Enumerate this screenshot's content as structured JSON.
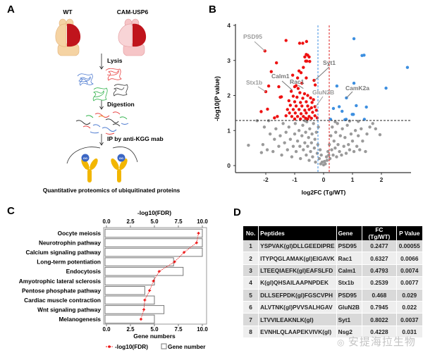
{
  "panels": {
    "a": "A",
    "b": "B",
    "c": "C",
    "d": "D"
  },
  "workflow": {
    "wt_label": "WT",
    "tg_label": "CAM-USP6",
    "step1": "Lysis",
    "step2": "Digestion",
    "step3": "IP by anti-KGG mab",
    "antibody_tag": "GG",
    "caption": "Quantitative proteomics of ubiquitinated proteins",
    "colors": {
      "wt_brain": "#f5d3a3",
      "tg_brain": "#f6c5c7",
      "hemisphere": "#c0141c",
      "antibody": "#f2b600",
      "gg_bead": "#3b66c4"
    }
  },
  "chart_data": [
    {
      "type": "scatter",
      "title": "",
      "xlabel": "log2FC (Tg/WT)",
      "ylabel": "-log10(P value)",
      "xlim": [
        -3,
        3
      ],
      "ylim": [
        -0.2,
        4
      ],
      "xticks": [
        "-2",
        "-1",
        "0",
        "1",
        "2"
      ],
      "yticks": [
        "0",
        "1",
        "2",
        "3",
        "4"
      ],
      "thresholds": {
        "p_line": 1.3,
        "fc_low": -0.2,
        "fc_high": 0.2
      },
      "grid": false,
      "colors": {
        "down": "#ee1111",
        "up": "#3d8fe0",
        "ns": "#9a9a9a",
        "fc_low_line": "#3d8fe0",
        "fc_high_line": "#dd2222",
        "p_line": "#222222"
      },
      "annotations": [
        {
          "label": "PSD95",
          "x": -2.03,
          "y": 3.27,
          "style": "light"
        },
        {
          "label": "Stx1b",
          "x": -2.0,
          "y": 2.11,
          "style": "light"
        },
        {
          "label": "Calm1",
          "x": -1.08,
          "y": 2.15,
          "style": "dark"
        },
        {
          "label": "Rac1",
          "x": -0.7,
          "y": 2.2,
          "style": "dark"
        },
        {
          "label": "Syt1",
          "x": -0.32,
          "y": 2.42,
          "style": "dark"
        },
        {
          "label": "GluN2B",
          "x": -0.28,
          "y": 1.67,
          "style": "light"
        },
        {
          "label": "CamK2a",
          "x": 0.79,
          "y": 1.93,
          "style": "dark"
        }
      ],
      "series": [
        {
          "group": "down",
          "points": [
            [
              -2.03,
              3.27
            ],
            [
              -2.0,
              2.11
            ],
            [
              -1.3,
              3.57
            ],
            [
              -0.83,
              3.49
            ],
            [
              -0.72,
              3.49
            ],
            [
              -0.59,
              3.54
            ],
            [
              -1.63,
              2.93
            ],
            [
              -1.81,
              2.68
            ],
            [
              -1.9,
              2.27
            ],
            [
              -2.16,
              1.54
            ],
            [
              -1.94,
              1.61
            ],
            [
              -1.55,
              2.25
            ],
            [
              -1.46,
              1.96
            ],
            [
              -1.5,
              1.95
            ],
            [
              -1.07,
              2.58
            ],
            [
              -0.33,
              2.43
            ],
            [
              -0.29,
              2.3
            ],
            [
              -0.6,
              3.17
            ],
            [
              -0.55,
              3.15
            ],
            [
              -0.5,
              3.1
            ],
            [
              -0.65,
              3.1
            ],
            [
              -0.48,
              2.97
            ],
            [
              -0.58,
              2.98
            ],
            [
              -0.62,
              2.98
            ],
            [
              -0.7,
              2.8
            ],
            [
              -0.85,
              2.7
            ],
            [
              -0.78,
              2.65
            ],
            [
              -0.9,
              2.5
            ],
            [
              -0.6,
              2.5
            ],
            [
              -0.75,
              2.35
            ],
            [
              -0.95,
              2.28
            ],
            [
              -1.0,
              2.25
            ],
            [
              -0.88,
              2.2
            ],
            [
              -1.12,
              2.12
            ],
            [
              -0.82,
              2.08
            ],
            [
              -0.66,
              2.05
            ],
            [
              -0.55,
              2.0
            ],
            [
              -1.05,
              1.98
            ],
            [
              -0.92,
              1.95
            ],
            [
              -0.72,
              1.92
            ],
            [
              -0.45,
              1.93
            ],
            [
              -0.35,
              1.88
            ],
            [
              -1.2,
              1.85
            ],
            [
              -1.0,
              1.82
            ],
            [
              -0.8,
              1.8
            ],
            [
              -0.6,
              1.82
            ],
            [
              -0.4,
              1.8
            ],
            [
              -1.15,
              1.72
            ],
            [
              -0.95,
              1.7
            ],
            [
              -0.75,
              1.7
            ],
            [
              -0.55,
              1.7
            ],
            [
              -0.3,
              1.68
            ],
            [
              -0.42,
              1.65
            ],
            [
              -1.25,
              1.6
            ],
            [
              -1.05,
              1.6
            ],
            [
              -0.85,
              1.6
            ],
            [
              -0.65,
              1.58
            ],
            [
              -0.5,
              1.6
            ],
            [
              -0.25,
              1.58
            ],
            [
              -1.18,
              1.5
            ],
            [
              -0.98,
              1.5
            ],
            [
              -0.78,
              1.48
            ],
            [
              -0.6,
              1.5
            ],
            [
              -0.38,
              1.52
            ],
            [
              -1.3,
              1.42
            ],
            [
              -1.1,
              1.4
            ],
            [
              -0.9,
              1.4
            ],
            [
              -0.7,
              1.4
            ],
            [
              -0.5,
              1.4
            ],
            [
              -0.3,
              1.42
            ],
            [
              -1.6,
              1.4
            ],
            [
              -1.7,
              1.36
            ],
            [
              -0.62,
              1.35
            ],
            [
              -0.42,
              1.35
            ],
            [
              -0.22,
              1.36
            ],
            [
              -1.0,
              1.33
            ],
            [
              -0.8,
              1.33
            ],
            [
              -0.55,
              1.33
            ]
          ]
        },
        {
          "group": "up",
          "points": [
            [
              1.05,
              3.62
            ],
            [
              1.33,
              3.14
            ],
            [
              1.4,
              3.15
            ],
            [
              2.9,
              2.8
            ],
            [
              1.05,
              2.35
            ],
            [
              0.46,
              2.27
            ],
            [
              2.16,
              2.21
            ],
            [
              0.79,
              1.93
            ],
            [
              1.13,
              1.71
            ],
            [
              1.48,
              1.67
            ],
            [
              0.54,
              1.68
            ],
            [
              0.34,
              1.63
            ],
            [
              0.64,
              1.55
            ],
            [
              0.99,
              1.46
            ],
            [
              1.03,
              1.46
            ],
            [
              0.24,
              1.32
            ],
            [
              0.74,
              1.31
            ],
            [
              1.41,
              1.32
            ],
            [
              0.78,
              1.32
            ]
          ]
        },
        {
          "group": "ns",
          "points": [
            [
              -2.6,
              0.58
            ],
            [
              -2.15,
              0.37
            ],
            [
              -2.1,
              0.6
            ],
            [
              -2.05,
              1.1
            ],
            [
              -1.95,
              0.45
            ],
            [
              -1.85,
              0.9
            ],
            [
              -1.75,
              0.4
            ],
            [
              -1.7,
              0.75
            ],
            [
              -1.65,
              1.05
            ],
            [
              -1.55,
              0.55
            ],
            [
              -1.5,
              0.85
            ],
            [
              -1.45,
              0.3
            ],
            [
              -1.4,
              1.2
            ],
            [
              -1.35,
              0.65
            ],
            [
              -1.3,
              0.95
            ],
            [
              -1.25,
              0.45
            ],
            [
              -1.2,
              1.1
            ],
            [
              -1.15,
              0.75
            ],
            [
              -1.1,
              0.25
            ],
            [
              -1.05,
              0.55
            ],
            [
              -1.0,
              0.9
            ],
            [
              -0.98,
              1.2
            ],
            [
              -0.95,
              0.4
            ],
            [
              -0.9,
              0.7
            ],
            [
              -0.85,
              1.0
            ],
            [
              -0.82,
              0.55
            ],
            [
              -0.8,
              0.2
            ],
            [
              -0.75,
              0.85
            ],
            [
              -0.72,
              1.15
            ],
            [
              -0.7,
              0.45
            ],
            [
              -0.65,
              0.65
            ],
            [
              -0.62,
              0.95
            ],
            [
              -0.6,
              0.3
            ],
            [
              -0.58,
              1.25
            ],
            [
              -0.55,
              0.55
            ],
            [
              -0.52,
              0.8
            ],
            [
              -0.5,
              0.15
            ],
            [
              -0.48,
              1.05
            ],
            [
              -0.45,
              0.4
            ],
            [
              -0.42,
              0.65
            ],
            [
              -0.4,
              0.9
            ],
            [
              -0.38,
              0.25
            ],
            [
              -0.35,
              1.2
            ],
            [
              -0.32,
              0.5
            ],
            [
              -0.3,
              0.75
            ],
            [
              -0.28,
              0.1
            ],
            [
              -0.25,
              0.95
            ],
            [
              -0.22,
              0.35
            ],
            [
              -0.2,
              0.6
            ],
            [
              -0.18,
              1.1
            ],
            [
              -0.15,
              0.2
            ],
            [
              -0.12,
              0.45
            ],
            [
              -0.1,
              0.05
            ],
            [
              -0.08,
              0.3
            ],
            [
              -0.05,
              0.1
            ],
            [
              0.0,
              0.02
            ],
            [
              0.03,
              0.12
            ],
            [
              0.06,
              0.05
            ],
            [
              0.1,
              0.25
            ],
            [
              0.12,
              0.15
            ],
            [
              0.15,
              0.4
            ],
            [
              0.18,
              0.3
            ],
            [
              0.2,
              0.6
            ],
            [
              0.22,
              0.2
            ],
            [
              0.25,
              0.85
            ],
            [
              0.28,
              0.45
            ],
            [
              0.3,
              1.1
            ],
            [
              0.33,
              0.3
            ],
            [
              0.36,
              0.7
            ],
            [
              0.4,
              0.5
            ],
            [
              0.42,
              0.95
            ],
            [
              0.45,
              0.25
            ],
            [
              0.48,
              1.2
            ],
            [
              0.5,
              0.6
            ],
            [
              0.55,
              0.4
            ],
            [
              0.58,
              0.85
            ],
            [
              0.62,
              0.3
            ],
            [
              0.65,
              1.05
            ],
            [
              0.7,
              0.55
            ],
            [
              0.74,
              0.8
            ],
            [
              0.78,
              0.35
            ],
            [
              0.82,
              1.15
            ],
            [
              0.86,
              0.6
            ],
            [
              0.9,
              0.45
            ],
            [
              0.95,
              0.9
            ],
            [
              1.0,
              0.7
            ],
            [
              1.05,
              0.4
            ],
            [
              1.1,
              1.0
            ],
            [
              1.15,
              0.55
            ],
            [
              1.2,
              0.85
            ],
            [
              1.25,
              0.45
            ],
            [
              1.3,
              1.05
            ],
            [
              1.35,
              0.7
            ],
            [
              1.45,
              0.4
            ],
            [
              1.5,
              0.9
            ],
            [
              1.6,
              1.1
            ],
            [
              1.7,
              1.2
            ],
            [
              1.8,
              1.05
            ],
            [
              1.95,
              0.88
            ],
            [
              -2.3,
              1.28
            ],
            [
              -1.9,
              1.28
            ],
            [
              -0.65,
              1.28
            ],
            [
              0.4,
              1.25
            ],
            [
              0.9,
              1.27
            ],
            [
              1.2,
              1.26
            ]
          ]
        }
      ]
    },
    {
      "type": "bar",
      "title": "-log10(FDR)",
      "xlabel": "Gene numbers",
      "xlim": [
        0,
        10
      ],
      "xticks": [
        "0.0",
        "2.5",
        "5.0",
        "7.5",
        "10.0"
      ],
      "categories": [
        "Oocyte meiosis",
        "Neurotrophin pathway",
        "Calcium signaling pathway",
        "Long-term potentiation",
        "Endocytosis",
        "Amyotrophic lateral sclerosis",
        "Pentose phosphate pathway",
        "Cardiac muscle contraction",
        "Wnt signaling pathway",
        "Melanogenesis"
      ],
      "series": [
        {
          "name": "Gene number",
          "type": "bar",
          "values": [
            10,
            10,
            10,
            7,
            8,
            5,
            4,
            5,
            6,
            5
          ]
        },
        {
          "name": "-log10(FDR)",
          "type": "line",
          "values": [
            9.6,
            9.4,
            8.1,
            7.1,
            5.5,
            4.9,
            4.5,
            4.0,
            3.9,
            3.6
          ]
        }
      ],
      "legend": "bottom",
      "colors": {
        "line": "#ee1111",
        "bar_fill": "#ffffff",
        "bar_edge": "#777777"
      }
    },
    {
      "type": "table",
      "columns": [
        "No.",
        "Peptides",
        "Gene",
        "FC (Tg/WT)",
        "P Value"
      ],
      "rows": [
        [
          "1",
          "YSPVAK(gl)DLLGEEDIPRE",
          "PSD95",
          "0.2477",
          "0.00055"
        ],
        [
          "2",
          "ITYPQGLAMAK(gl)EIGAVK",
          "Rac1",
          "0.6327",
          "0.0066"
        ],
        [
          "3",
          "LTEEQIAEFK(gl)EAFSLFD",
          "Calm1",
          "0.4793",
          "0.0074"
        ],
        [
          "4",
          "K(gl)QHSAILAAPNPDEK",
          "Stx1b",
          "0.2539",
          "0.0077"
        ],
        [
          "5",
          "DLLSEFPDK(gl)FGSCVPH",
          "PSD95",
          "0.468",
          "0.029"
        ],
        [
          "6",
          "ALVTNK(gl)PVVSALHGAV",
          "GluN2B",
          "0.7945",
          "0.022"
        ],
        [
          "7",
          "LTVVILEAKNLK(gl)",
          "Syt1",
          "0.8022",
          "0.0037"
        ],
        [
          "8",
          "EVNHLQLAAPEKVIVK(gl)",
          "Nsg2",
          "0.4228",
          "0.031"
        ]
      ]
    }
  ],
  "watermark": "安提海拉生物"
}
